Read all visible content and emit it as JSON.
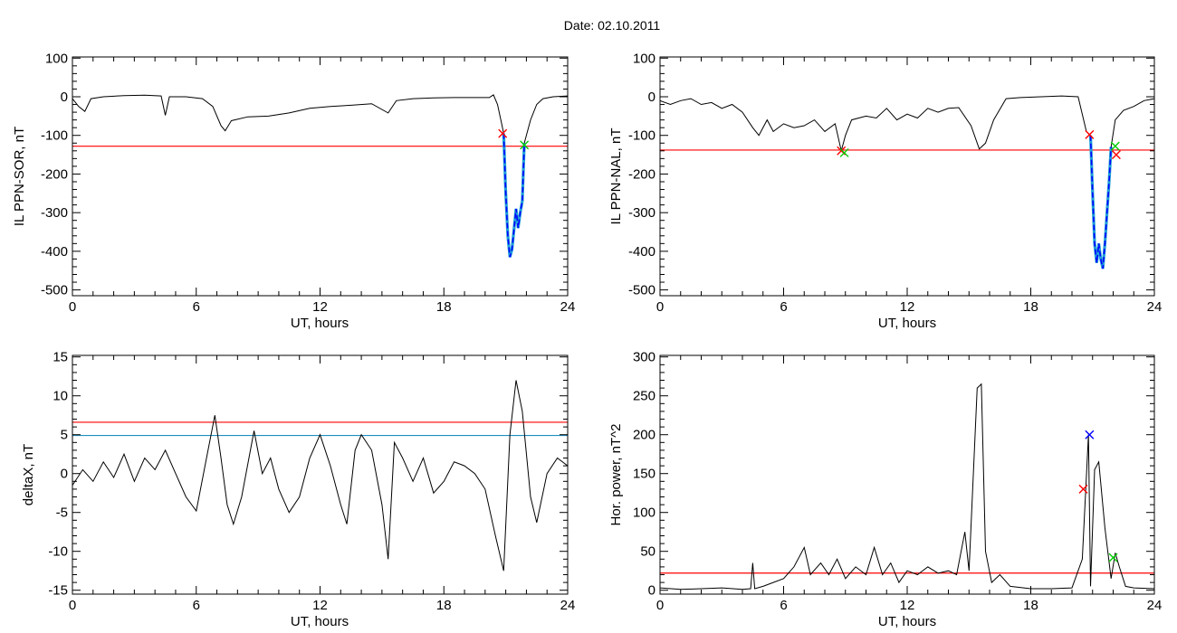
{
  "figure": {
    "title": "Date:  02.10.2011"
  },
  "chart_data": [
    {
      "id": "sor",
      "type": "line",
      "xlabel": "UT, hours",
      "ylabel": "IL PPN-SOR, nT",
      "xlim": [
        0,
        24
      ],
      "ylim": [
        -515,
        103
      ],
      "xticks": [
        0,
        6,
        12,
        18,
        24
      ],
      "yticks": [
        100,
        0,
        -100,
        -200,
        -300,
        -400,
        -500
      ],
      "grid": false,
      "colors": {
        "trace": "#000000",
        "threshold": "#ff0000",
        "event": "#0000ff",
        "event_edge": "#1fa0d8"
      },
      "trace": [
        [
          0,
          -5
        ],
        [
          0.3,
          -25
        ],
        [
          0.6,
          -38
        ],
        [
          0.9,
          -5
        ],
        [
          1.5,
          0
        ],
        [
          2.5,
          3
        ],
        [
          3.5,
          4
        ],
        [
          4.3,
          2
        ],
        [
          4.5,
          -48
        ],
        [
          4.7,
          0
        ],
        [
          5.5,
          0
        ],
        [
          6.3,
          -5
        ],
        [
          6.8,
          -25
        ],
        [
          7.2,
          -75
        ],
        [
          7.4,
          -88
        ],
        [
          7.7,
          -62
        ],
        [
          8.5,
          -52
        ],
        [
          9.5,
          -50
        ],
        [
          10.5,
          -42
        ],
        [
          11.5,
          -30
        ],
        [
          12.5,
          -25
        ],
        [
          13.5,
          -22
        ],
        [
          14.5,
          -18
        ],
        [
          15.3,
          -42
        ],
        [
          15.7,
          -10
        ],
        [
          16.5,
          -5
        ],
        [
          17.5,
          -3
        ],
        [
          18.5,
          -2
        ],
        [
          19.5,
          -2
        ],
        [
          20.2,
          -2
        ],
        [
          20.4,
          5
        ],
        [
          20.6,
          -20
        ],
        [
          20.8,
          -70
        ],
        [
          20.9,
          -95
        ]
      ],
      "event_drop": [
        [
          20.9,
          -95
        ],
        [
          21.0,
          -250
        ],
        [
          21.1,
          -360
        ],
        [
          21.2,
          -415
        ],
        [
          21.3,
          -395
        ],
        [
          21.5,
          -290
        ],
        [
          21.6,
          -340
        ],
        [
          21.7,
          -300
        ],
        [
          21.8,
          -270
        ],
        [
          21.9,
          -120
        ]
      ],
      "trace_after": [
        [
          21.9,
          -120
        ],
        [
          22.2,
          -60
        ],
        [
          22.5,
          -20
        ],
        [
          22.8,
          -5
        ],
        [
          23.3,
          0
        ],
        [
          24,
          2
        ]
      ],
      "threshold": -128,
      "markers": [
        {
          "x": 20.85,
          "y": -95,
          "color": "#ff0000"
        },
        {
          "x": 21.9,
          "y": -125,
          "color": "#00cc00"
        }
      ]
    },
    {
      "id": "nal",
      "type": "line",
      "xlabel": "UT, hours",
      "ylabel": "IL PPN-NAL, nT",
      "xlim": [
        0,
        24
      ],
      "ylim": [
        -515,
        103
      ],
      "xticks": [
        0,
        6,
        12,
        18,
        24
      ],
      "yticks": [
        100,
        0,
        -100,
        -200,
        -300,
        -400,
        -500
      ],
      "grid": false,
      "colors": {
        "trace": "#000000",
        "threshold": "#ff0000",
        "event": "#0000ff",
        "event_edge": "#1fa0d8"
      },
      "trace": [
        [
          0,
          -10
        ],
        [
          0.5,
          -20
        ],
        [
          1,
          -10
        ],
        [
          1.5,
          -5
        ],
        [
          2,
          -20
        ],
        [
          2.5,
          -15
        ],
        [
          3,
          -30
        ],
        [
          3.5,
          -20
        ],
        [
          4,
          -40
        ],
        [
          4.5,
          -80
        ],
        [
          4.8,
          -100
        ],
        [
          5.2,
          -60
        ],
        [
          5.5,
          -90
        ],
        [
          6,
          -70
        ],
        [
          6.5,
          -80
        ],
        [
          7,
          -75
        ],
        [
          7.5,
          -60
        ],
        [
          8,
          -90
        ],
        [
          8.5,
          -70
        ],
        [
          8.8,
          -140
        ],
        [
          9.0,
          -100
        ],
        [
          9.3,
          -60
        ],
        [
          10,
          -50
        ],
        [
          10.5,
          -55
        ],
        [
          11,
          -30
        ],
        [
          11.5,
          -60
        ],
        [
          12,
          -45
        ],
        [
          12.5,
          -55
        ],
        [
          13,
          -30
        ],
        [
          13.5,
          -40
        ],
        [
          14,
          -30
        ],
        [
          14.5,
          -28
        ],
        [
          15.1,
          -75
        ],
        [
          15.5,
          -135
        ],
        [
          15.8,
          -120
        ],
        [
          16.2,
          -60
        ],
        [
          16.8,
          -5
        ],
        [
          17.5,
          -2
        ],
        [
          18.5,
          0
        ],
        [
          19.5,
          2
        ],
        [
          20.3,
          0
        ],
        [
          20.7,
          -90
        ],
        [
          20.9,
          -100
        ]
      ],
      "event_drop": [
        [
          20.9,
          -100
        ],
        [
          21.0,
          -250
        ],
        [
          21.1,
          -380
        ],
        [
          21.2,
          -430
        ],
        [
          21.3,
          -380
        ],
        [
          21.4,
          -420
        ],
        [
          21.5,
          -445
        ],
        [
          21.6,
          -380
        ],
        [
          21.7,
          -300
        ],
        [
          21.8,
          -220
        ],
        [
          21.9,
          -130
        ]
      ],
      "trace_after": [
        [
          21.9,
          -130
        ],
        [
          22.1,
          -60
        ],
        [
          22.5,
          -35
        ],
        [
          23,
          -25
        ],
        [
          23.5,
          -10
        ],
        [
          24,
          -5
        ]
      ],
      "threshold": -138,
      "markers": [
        {
          "x": 8.8,
          "y": -140,
          "color": "#ff0000"
        },
        {
          "x": 8.95,
          "y": -145,
          "color": "#00cc00"
        },
        {
          "x": 20.85,
          "y": -98,
          "color": "#ff0000"
        },
        {
          "x": 22.1,
          "y": -128,
          "color": "#00cc00"
        },
        {
          "x": 22.15,
          "y": -150,
          "color": "#ff0000"
        }
      ]
    },
    {
      "id": "deltax",
      "type": "line",
      "xlabel": "UT, hours",
      "ylabel": "deltaX, nT",
      "xlim": [
        0,
        24
      ],
      "ylim": [
        -15.5,
        15.2
      ],
      "xticks": [
        0,
        6,
        12,
        18,
        24
      ],
      "yticks": [
        15,
        10,
        5,
        0,
        -5,
        -10,
        -15
      ],
      "grid": false,
      "colors": {
        "trace": "#000000",
        "threshold": "#ff0000",
        "threshold2": "#1f8fc0"
      },
      "trace": [
        [
          0,
          -1.5
        ],
        [
          0.5,
          0.5
        ],
        [
          1,
          -1
        ],
        [
          1.5,
          1.5
        ],
        [
          2,
          -0.5
        ],
        [
          2.5,
          2.5
        ],
        [
          3,
          -1
        ],
        [
          3.5,
          2
        ],
        [
          4,
          0.5
        ],
        [
          4.5,
          3
        ],
        [
          5,
          0
        ],
        [
          5.5,
          -3
        ],
        [
          6,
          -4.8
        ],
        [
          6.5,
          2
        ],
        [
          6.9,
          7.5
        ],
        [
          7.2,
          2
        ],
        [
          7.5,
          -4
        ],
        [
          7.8,
          -6.5
        ],
        [
          8.2,
          -3
        ],
        [
          8.8,
          5.5
        ],
        [
          9.2,
          0
        ],
        [
          9.6,
          2
        ],
        [
          10,
          -2
        ],
        [
          10.5,
          -5
        ],
        [
          11,
          -3
        ],
        [
          11.5,
          2
        ],
        [
          12,
          5
        ],
        [
          12.5,
          1
        ],
        [
          13,
          -4
        ],
        [
          13.3,
          -6.5
        ],
        [
          13.7,
          3
        ],
        [
          14,
          5
        ],
        [
          14.5,
          3
        ],
        [
          15,
          -4
        ],
        [
          15.3,
          -11
        ],
        [
          15.6,
          4
        ],
        [
          16,
          2
        ],
        [
          16.5,
          -1
        ],
        [
          17,
          2
        ],
        [
          17.5,
          -2.5
        ],
        [
          18,
          -1
        ],
        [
          18.5,
          1.5
        ],
        [
          19,
          1
        ],
        [
          19.5,
          0
        ],
        [
          20,
          -2
        ],
        [
          20.5,
          -8
        ],
        [
          20.9,
          -12.5
        ],
        [
          21.2,
          5
        ],
        [
          21.5,
          12
        ],
        [
          21.8,
          8
        ],
        [
          22.2,
          -3
        ],
        [
          22.5,
          -6.3
        ],
        [
          23,
          0
        ],
        [
          23.5,
          2
        ],
        [
          24,
          1
        ]
      ],
      "threshold": 6.6,
      "threshold2": 4.9
    },
    {
      "id": "power",
      "type": "line",
      "xlabel": "UT, hours",
      "ylabel": "Hor. power, nT^2",
      "xlim": [
        0,
        24
      ],
      "ylim": [
        -5,
        302
      ],
      "xticks": [
        0,
        6,
        12,
        18,
        24
      ],
      "yticks": [
        300,
        250,
        200,
        150,
        100,
        50,
        0
      ],
      "grid": false,
      "colors": {
        "trace": "#000000",
        "threshold": "#ff0000"
      },
      "trace": [
        [
          0,
          3
        ],
        [
          1,
          1
        ],
        [
          2,
          2
        ],
        [
          3,
          3
        ],
        [
          4,
          1
        ],
        [
          4.4,
          2
        ],
        [
          4.5,
          35
        ],
        [
          4.6,
          2
        ],
        [
          5,
          5
        ],
        [
          5.5,
          10
        ],
        [
          6,
          15
        ],
        [
          6.5,
          30
        ],
        [
          7,
          55
        ],
        [
          7.3,
          20
        ],
        [
          7.8,
          35
        ],
        [
          8.2,
          20
        ],
        [
          8.6,
          40
        ],
        [
          9,
          15
        ],
        [
          9.5,
          30
        ],
        [
          10,
          20
        ],
        [
          10.4,
          55
        ],
        [
          10.8,
          20
        ],
        [
          11.2,
          35
        ],
        [
          11.6,
          10
        ],
        [
          12,
          25
        ],
        [
          12.5,
          20
        ],
        [
          13,
          30
        ],
        [
          13.5,
          22
        ],
        [
          14,
          25
        ],
        [
          14.4,
          20
        ],
        [
          14.8,
          75
        ],
        [
          15.0,
          25
        ],
        [
          15.4,
          260
        ],
        [
          15.6,
          265
        ],
        [
          15.8,
          50
        ],
        [
          16.1,
          10
        ],
        [
          16.5,
          20
        ],
        [
          17,
          5
        ],
        [
          18,
          2
        ],
        [
          19,
          2
        ],
        [
          20,
          3
        ],
        [
          20.5,
          40
        ],
        [
          20.8,
          200
        ],
        [
          20.9,
          5
        ],
        [
          21.1,
          155
        ],
        [
          21.3,
          165
        ],
        [
          21.6,
          80
        ],
        [
          21.9,
          15
        ],
        [
          22.1,
          48
        ],
        [
          22.3,
          30
        ],
        [
          22.6,
          5
        ],
        [
          23,
          3
        ],
        [
          24,
          2
        ]
      ],
      "threshold": 22,
      "markers": [
        {
          "x": 20.55,
          "y": 130,
          "color": "#ff0000"
        },
        {
          "x": 20.85,
          "y": 200,
          "color": "#0000ff"
        },
        {
          "x": 22.0,
          "y": 42,
          "color": "#00cc00"
        }
      ]
    }
  ]
}
